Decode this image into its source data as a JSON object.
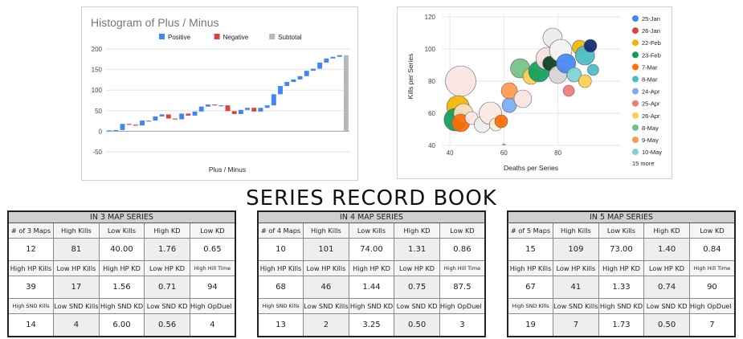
{
  "histogram": {
    "chart_data": {
      "type": "waterfall",
      "title": "Histogram of Plus / Minus",
      "xlabel": "Plus / Minus",
      "ylabel": "",
      "ylim": [
        -50,
        200
      ],
      "yticks": [
        "200",
        "150",
        "100",
        "50",
        "0",
        "-50"
      ],
      "legend": [
        {
          "name": "Positive",
          "color": "#4285f4"
        },
        {
          "name": "Negative",
          "color": "#db4437"
        },
        {
          "name": "Subtotal",
          "color": "#b7b7b7"
        }
      ],
      "legend_position": "top",
      "steps": [
        2,
        1,
        15,
        -2,
        -2,
        12,
        0,
        10,
        5,
        -10,
        -2,
        14,
        -5,
        10,
        12,
        5,
        -2,
        0,
        -14,
        -7,
        10,
        5,
        -9,
        9,
        6,
        27,
        20,
        10,
        6,
        8,
        13,
        5,
        15,
        10,
        4,
        4
      ],
      "subtotal": 185,
      "grid": true
    }
  },
  "bubble": {
    "chart_data": {
      "type": "scatter",
      "subtype": "bubble",
      "xlabel": "Deaths per Series",
      "ylabel": "Kills per Series",
      "xlim": [
        37,
        103
      ],
      "ylim": [
        40,
        122
      ],
      "xticks": [
        "40",
        "60",
        "80"
      ],
      "yticks": [
        "40",
        "60",
        "80",
        "100",
        "120"
      ],
      "legend_position": "right",
      "legend": [
        {
          "name": "25-Jan",
          "color": "#4285f4"
        },
        {
          "name": "26-Jan",
          "color": "#db4437"
        },
        {
          "name": "22-Feb",
          "color": "#f4b400"
        },
        {
          "name": "23-Feb",
          "color": "#0f9d58"
        },
        {
          "name": "7-Mar",
          "color": "#ff6d01"
        },
        {
          "name": "8-Mar",
          "color": "#46bdc6"
        },
        {
          "name": "24-Apr",
          "color": "#7baaf7"
        },
        {
          "name": "25-Apr",
          "color": "#f07b72"
        },
        {
          "name": "26-Apr",
          "color": "#fcd04f"
        },
        {
          "name": "8-May",
          "color": "#71c287"
        },
        {
          "name": "9-May",
          "color": "#ff994d"
        },
        {
          "name": "10-May",
          "color": "#7ed1d7"
        }
      ],
      "legend_more": "15 more",
      "points": [
        {
          "x": 44,
          "y": 80,
          "r": 19,
          "color": "#fbe4e2"
        },
        {
          "x": 43,
          "y": 64,
          "r": 14,
          "color": "#f4b400"
        },
        {
          "x": 42,
          "y": 56,
          "r": 14,
          "color": "#0f9d58"
        },
        {
          "x": 45,
          "y": 60,
          "r": 12,
          "color": "#f9e2c4"
        },
        {
          "x": 44,
          "y": 54,
          "r": 11,
          "color": "#ff6d01"
        },
        {
          "x": 48,
          "y": 57,
          "r": 8,
          "color": "#fde7e4"
        },
        {
          "x": 52,
          "y": 53,
          "r": 10,
          "color": "#eeeeee"
        },
        {
          "x": 55,
          "y": 60,
          "r": 14,
          "color": "#fbe8e3"
        },
        {
          "x": 57,
          "y": 53,
          "r": 8,
          "color": "#fdebd6"
        },
        {
          "x": 59,
          "y": 55,
          "r": 8,
          "color": "#ff6d01"
        },
        {
          "x": 62,
          "y": 65,
          "r": 9,
          "color": "#7baaf7"
        },
        {
          "x": 62,
          "y": 74,
          "r": 10,
          "color": "#ff994d"
        },
        {
          "x": 67,
          "y": 69,
          "r": 11,
          "color": "#fbe4e2"
        },
        {
          "x": 66,
          "y": 88,
          "r": 12,
          "color": "#71c287"
        },
        {
          "x": 70,
          "y": 83,
          "r": 10,
          "color": "#fcd04f"
        },
        {
          "x": 73,
          "y": 86,
          "r": 13,
          "color": "#0f9d58"
        },
        {
          "x": 76,
          "y": 94,
          "r": 14,
          "color": "#f9e0dd"
        },
        {
          "x": 77,
          "y": 91,
          "r": 9,
          "color": "#0b3d1f"
        },
        {
          "x": 78,
          "y": 107,
          "r": 12,
          "color": "#eaeaea"
        },
        {
          "x": 80,
          "y": 84,
          "r": 11,
          "color": "#d5d5d5"
        },
        {
          "x": 81,
          "y": 99,
          "r": 14,
          "color": "#f3f3f3"
        },
        {
          "x": 83,
          "y": 91,
          "r": 12,
          "color": "#4285f4"
        },
        {
          "x": 84,
          "y": 74,
          "r": 7,
          "color": "#f07b72"
        },
        {
          "x": 86,
          "y": 84,
          "r": 9,
          "color": "#7ed1d7"
        },
        {
          "x": 88,
          "y": 101,
          "r": 9,
          "color": "#f4b400"
        },
        {
          "x": 90,
          "y": 96,
          "r": 12,
          "color": "#46bdc6"
        },
        {
          "x": 90,
          "y": 80,
          "r": 8,
          "color": "#fcd04f"
        },
        {
          "x": 92,
          "y": 102,
          "r": 8,
          "color": "#0b2a6b"
        },
        {
          "x": 93,
          "y": 87,
          "r": 7,
          "color": "#46bdc6"
        },
        {
          "x": 60,
          "y": 40,
          "r": 2,
          "color": "#7baaf7"
        }
      ]
    }
  },
  "page_title": "SERIES RECORD BOOK",
  "tables": [
    {
      "title": "IN 3 MAP SERIES",
      "rows": [
        {
          "labels": [
            "# of 3 Maps",
            "High Kills",
            "Low Kills",
            "High KD",
            "Low KD"
          ],
          "values": [
            "12",
            "81",
            "40.00",
            "1.76",
            "0.65"
          ]
        },
        {
          "labels": [
            "High HP Kills",
            "Low HP Kills",
            "High HP KD",
            "Low HP KD",
            "High Hill Time"
          ],
          "values": [
            "39",
            "17",
            "1.56",
            "0.71",
            "94"
          ]
        },
        {
          "labels": [
            "High SND Kills",
            "Low SND Kills",
            "High SND KD",
            "Low SND KD",
            "High OpDuel W"
          ],
          "values": [
            "14",
            "4",
            "6.00",
            "0.56",
            "4"
          ]
        }
      ]
    },
    {
      "title": "IN 4 MAP SERIES",
      "rows": [
        {
          "labels": [
            "# of 4 Maps",
            "High Kills",
            "Low Kills",
            "High KD",
            "Low KD"
          ],
          "values": [
            "10",
            "101",
            "74.00",
            "1.31",
            "0.86"
          ]
        },
        {
          "labels": [
            "High HP Kills",
            "Low HP Kills",
            "High HP KD",
            "Low HP KD",
            "High Hill Time"
          ],
          "values": [
            "68",
            "46",
            "1.44",
            "0.75",
            "87.5"
          ]
        },
        {
          "labels": [
            "High SND Kills",
            "Low SND Kills",
            "High SND KD",
            "Low SND KD",
            "High OpDuel W"
          ],
          "values": [
            "13",
            "2",
            "3.25",
            "0.50",
            "3"
          ]
        }
      ]
    },
    {
      "title": "IN 5 MAP SERIES",
      "rows": [
        {
          "labels": [
            "# of 5 Maps",
            "High Kills",
            "Low Kills",
            "High KD",
            "Low KD"
          ],
          "values": [
            "15",
            "109",
            "73.00",
            "1.40",
            "0.84"
          ]
        },
        {
          "labels": [
            "High HP Kills",
            "Low HP Kills",
            "High HP KD",
            "Low HP KD",
            "High Hill Time"
          ],
          "values": [
            "67",
            "41",
            "1.33",
            "0.74",
            "90"
          ]
        },
        {
          "labels": [
            "High SND Kills",
            "Low SND Kills",
            "High SND KD",
            "Low SND KD",
            "High OpDuel W"
          ],
          "values": [
            "19",
            "7",
            "1.73",
            "0.50",
            "7"
          ]
        }
      ]
    }
  ]
}
